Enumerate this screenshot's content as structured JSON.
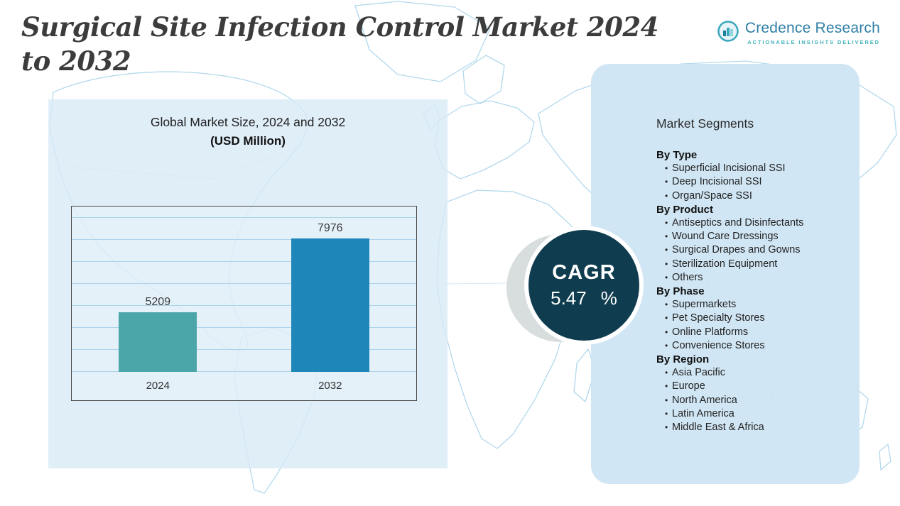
{
  "page": {
    "title": "Surgical Site Infection Control Market 2024 to 2032"
  },
  "brand": {
    "name": "Credence Research",
    "tagline": "ACTIONABLE INSIGHTS DELIVERED"
  },
  "chart": {
    "title": "Global Market Size, 2024 and 2032",
    "units_label": "(USD Million)"
  },
  "chart_data": {
    "type": "bar",
    "title": "Global Market Size, 2024 and 2032",
    "ylabel": "USD Million",
    "categories": [
      "2024",
      "2032"
    ],
    "values": [
      5209,
      7976
    ],
    "ylim": [
      3000,
      9000
    ],
    "grid": true,
    "legend": false,
    "bar_colors": [
      "#4AA6A8",
      "#1E86B9"
    ]
  },
  "cagr": {
    "label": "CAGR",
    "value": "5.47",
    "unit": "%"
  },
  "segments": {
    "title": "Market Segments",
    "groups": [
      {
        "label": "By Type",
        "items": [
          "Superficial Incisional SSI",
          "Deep Incisional SSI",
          "Organ/Space SSI"
        ]
      },
      {
        "label": "By Product",
        "items": [
          "Antiseptics and Disinfectants",
          "Wound Care Dressings",
          "Surgical Drapes and Gowns",
          "Sterilization Equipment",
          "Others"
        ]
      },
      {
        "label": "By Phase",
        "items": [
          "Supermarkets",
          "Pet Specialty Stores",
          "Online Platforms",
          "Convenience Stores"
        ]
      },
      {
        "label": "By Region",
        "items": [
          "Asia Pacific",
          "Europe",
          "North America",
          "Latin America",
          "Middle East & Africa"
        ]
      }
    ]
  },
  "colors": {
    "title_text": "#3C3C3C",
    "chart_panel_bg": "#D8EAF6",
    "segments_panel_bg": "#CDE4F3",
    "map_line": "#B2D9EC",
    "bar_2024": "#4AA6A8",
    "bar_2032": "#1E86B9",
    "cagr_circle": "#0F3D4F",
    "brand_blue": "#2E7FA6",
    "brand_teal": "#43B3BA"
  }
}
